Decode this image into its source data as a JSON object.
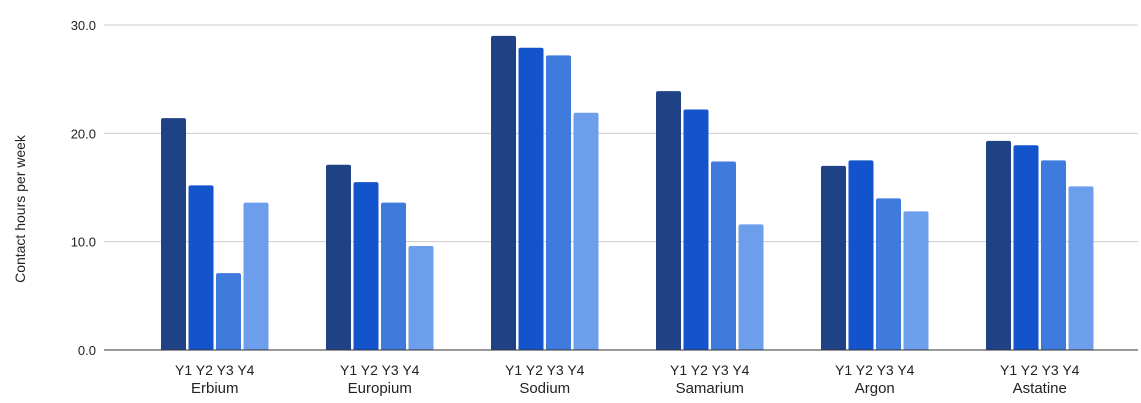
{
  "chart_data": {
    "type": "bar",
    "title": "",
    "xlabel": "",
    "ylabel": "Contact hours per week",
    "categories": [
      "Erbium",
      "Europium",
      "Sodium",
      "Samarium",
      "Argon",
      "Astatine"
    ],
    "sub_labels": [
      "Y1",
      "Y2",
      "Y3",
      "Y4"
    ],
    "series": [
      {
        "values": [
          21.4,
          17.1,
          29.0,
          23.9,
          17.0,
          19.3
        ],
        "color": "#1f4287"
      },
      {
        "values": [
          15.2,
          15.5,
          27.9,
          22.2,
          17.5,
          18.9
        ],
        "color": "#1353cc"
      },
      {
        "values": [
          7.1,
          13.6,
          27.2,
          17.4,
          14.0,
          17.5
        ],
        "color": "#3f7bdc"
      },
      {
        "values": [
          13.6,
          9.6,
          21.9,
          11.6,
          12.8,
          15.1
        ],
        "color": "#6c9eec"
      }
    ],
    "ylim": [
      0,
      30
    ],
    "yticks": [
      0,
      10,
      20,
      30
    ],
    "ytick_labels": [
      "0.0",
      "10.0",
      "20.0",
      "30.0"
    ],
    "grid": true,
    "gridline_color": "#cccccc",
    "legend": "none"
  }
}
